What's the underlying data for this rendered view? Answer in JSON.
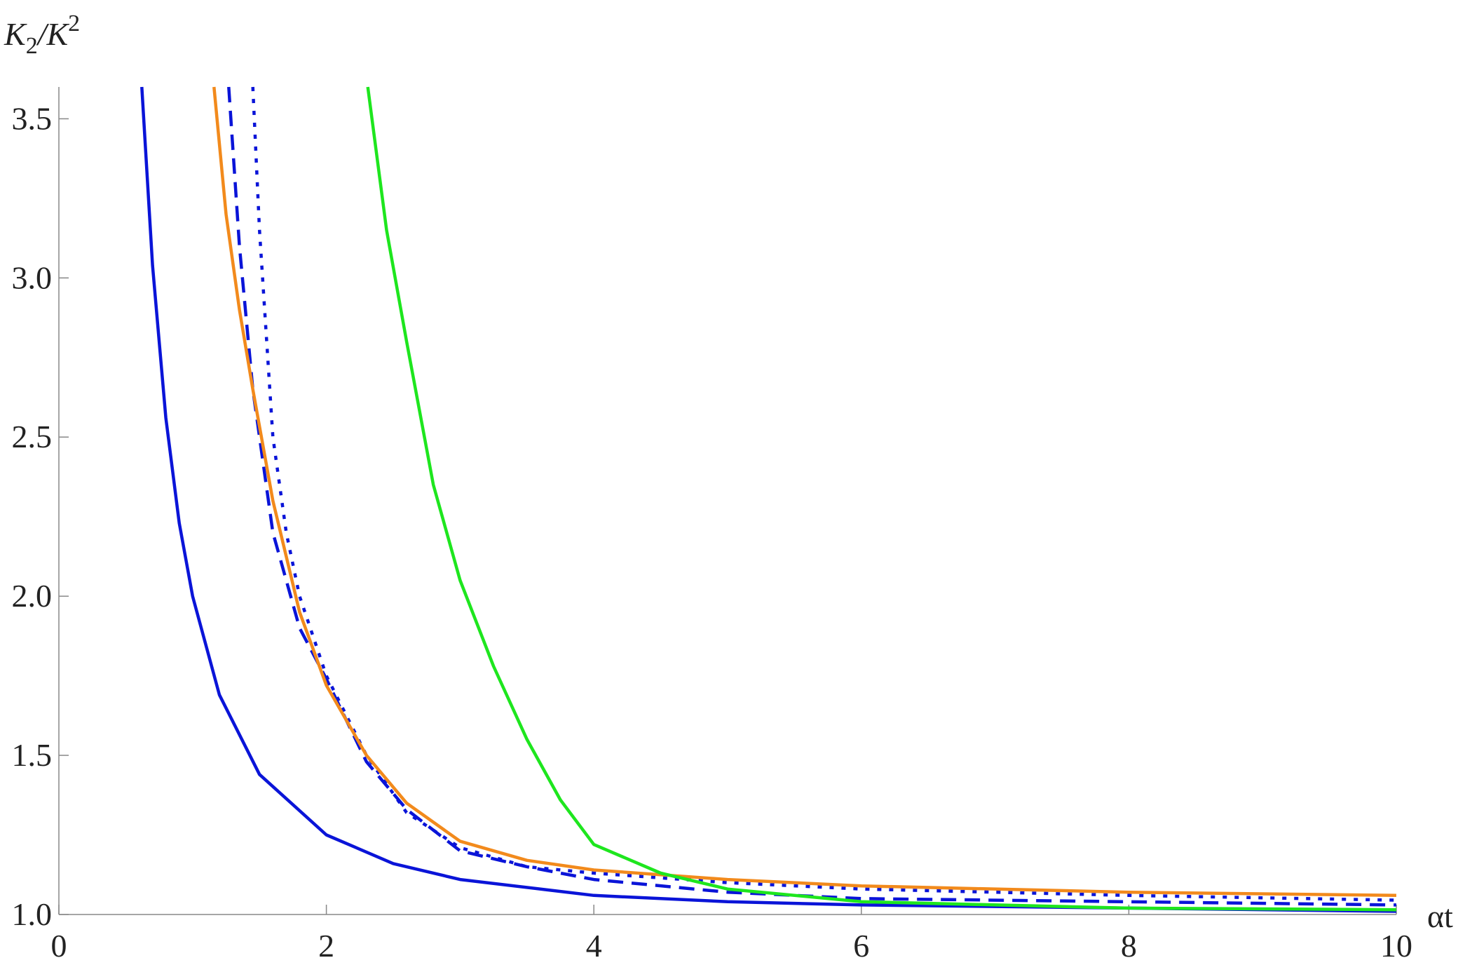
{
  "chart_data": {
    "type": "line",
    "ylabel": [
      "K",
      "2",
      "/K",
      "2"
    ],
    "xlabel": "αt",
    "xlim": [
      0,
      10
    ],
    "ylim": [
      1,
      3.6
    ],
    "xticks": [
      0,
      2,
      4,
      6,
      8,
      10
    ],
    "yticks": [
      {
        "value": 1,
        "label": "1.0"
      },
      1.5,
      {
        "value": 2,
        "label": "2.0"
      },
      2.5,
      {
        "value": 3,
        "label": "3.0"
      },
      3.5
    ],
    "series": [
      {
        "color": "#0a14d8",
        "dash": "solid",
        "x": [
          0.62,
          0.7,
          0.8,
          0.9,
          1,
          1.2,
          1.5,
          2,
          2.5,
          3,
          4,
          5,
          6,
          8,
          10
        ],
        "values": [
          3.6,
          3.04,
          2.56,
          2.23,
          2.0,
          1.69,
          1.44,
          1.25,
          1.16,
          1.11,
          1.06,
          1.04,
          1.03,
          1.02,
          1.01
        ]
      },
      {
        "color": "#0a14d8",
        "dash": "dashed",
        "x": [
          1.27,
          1.35,
          1.45,
          1.6,
          1.8,
          2,
          2.3,
          2.6,
          3,
          3.5,
          4,
          5,
          6,
          8,
          10
        ],
        "values": [
          3.6,
          3.1,
          2.65,
          2.2,
          1.9,
          1.74,
          1.48,
          1.33,
          1.2,
          1.15,
          1.11,
          1.07,
          1.05,
          1.04,
          1.03
        ]
      },
      {
        "color": "#0a14d8",
        "dash": "dotted",
        "x": [
          1.45,
          1.5,
          1.6,
          1.7,
          1.8,
          2,
          2.3,
          2.6,
          3,
          3.5,
          4,
          5,
          6,
          8,
          10
        ],
        "values": [
          3.6,
          3.15,
          2.5,
          2.2,
          2.0,
          1.75,
          1.5,
          1.32,
          1.21,
          1.15,
          1.13,
          1.1,
          1.08,
          1.06,
          1.045
        ]
      },
      {
        "color": "#f28a1c",
        "dash": "solid",
        "x": [
          1.16,
          1.25,
          1.35,
          1.45,
          1.6,
          1.8,
          2,
          2.3,
          2.6,
          3,
          3.5,
          4,
          5,
          6,
          8,
          10
        ],
        "values": [
          3.6,
          3.2,
          2.9,
          2.65,
          2.3,
          1.95,
          1.72,
          1.5,
          1.35,
          1.23,
          1.17,
          1.14,
          1.11,
          1.09,
          1.07,
          1.06
        ]
      },
      {
        "color": "#1ee61e",
        "dash": "solid",
        "x": [
          2.31,
          2.45,
          2.6,
          2.8,
          3,
          3.25,
          3.5,
          3.75,
          4,
          4.5,
          5,
          6,
          8,
          10
        ],
        "values": [
          3.6,
          3.15,
          2.8,
          2.35,
          2.05,
          1.78,
          1.55,
          1.36,
          1.22,
          1.13,
          1.08,
          1.04,
          1.02,
          1.015
        ]
      }
    ]
  }
}
